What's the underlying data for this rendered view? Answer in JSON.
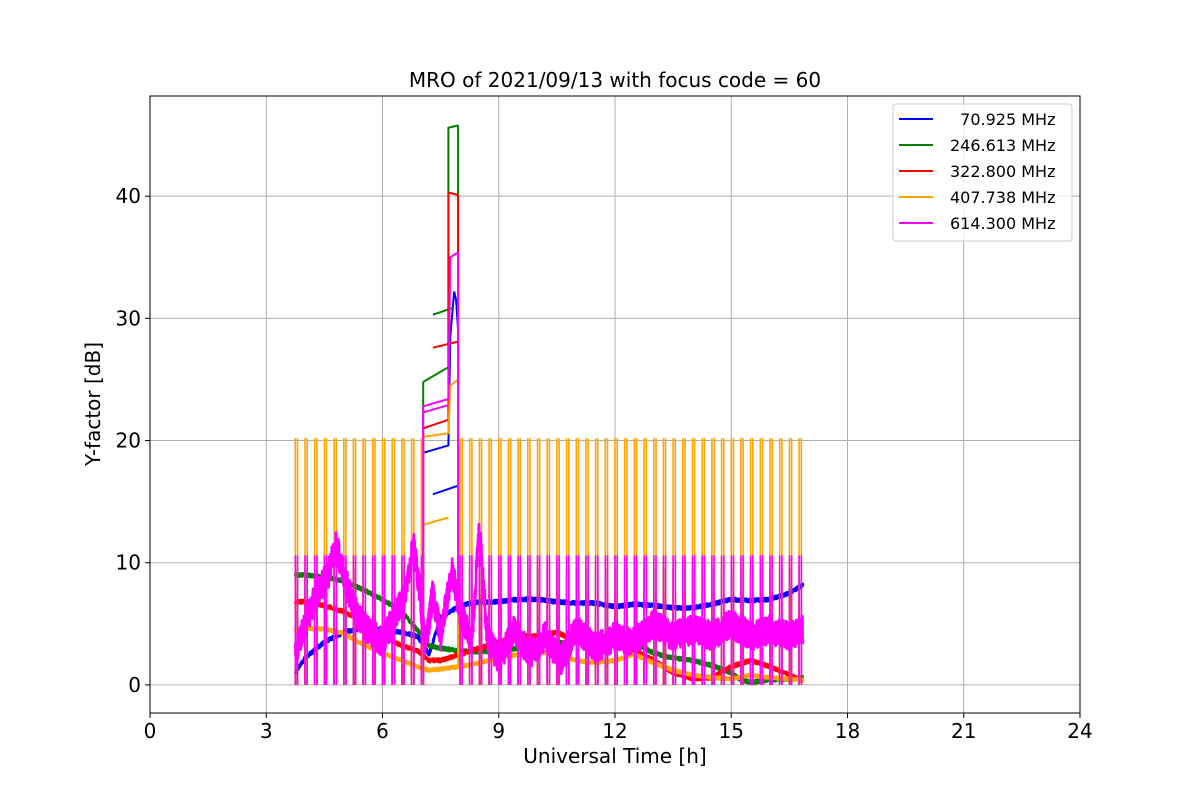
{
  "chart_data": {
    "type": "line",
    "title": "MRO of 2021/09/13 with focus code = 60",
    "xlabel": "Universal Time [h]",
    "ylabel": "Y-factor [dB]",
    "xlim": [
      0,
      24
    ],
    "ylim": [
      -2.3,
      48.2
    ],
    "xticks": [
      0,
      3,
      6,
      9,
      12,
      15,
      18,
      21,
      24
    ],
    "yticks": [
      0,
      10,
      20,
      30,
      40
    ],
    "grid": true,
    "legend_position": "top-right",
    "series": [
      {
        "name": "  70.925 MHz",
        "color": "#0000ff",
        "baseline": [
          [
            3.75,
            1.0
          ],
          [
            4.0,
            2.2
          ],
          [
            4.5,
            3.5
          ],
          [
            5.0,
            4.3
          ],
          [
            5.5,
            4.7
          ],
          [
            6.0,
            4.5
          ],
          [
            6.5,
            4.3
          ],
          [
            6.9,
            4.0
          ],
          [
            7.2,
            2.5
          ],
          [
            7.5,
            5.5
          ],
          [
            8.0,
            6.5
          ],
          [
            8.5,
            6.8
          ],
          [
            9.0,
            6.8
          ],
          [
            9.5,
            7.0
          ],
          [
            10.0,
            7.0
          ],
          [
            10.5,
            6.8
          ],
          [
            11.0,
            6.7
          ],
          [
            11.5,
            6.7
          ],
          [
            12.0,
            6.4
          ],
          [
            12.5,
            6.6
          ],
          [
            13.0,
            6.5
          ],
          [
            13.5,
            6.3
          ],
          [
            14.0,
            6.3
          ],
          [
            14.5,
            6.6
          ],
          [
            15.0,
            7.0
          ],
          [
            15.5,
            6.9
          ],
          [
            16.0,
            7.0
          ],
          [
            16.5,
            7.5
          ],
          [
            16.85,
            8.2
          ]
        ],
        "burst": [
          [
            7.05,
            19.0
          ],
          [
            7.7,
            19.6
          ],
          [
            7.75,
            28.5
          ],
          [
            7.85,
            32.2
          ],
          [
            7.9,
            31.5
          ],
          [
            7.95,
            29.0
          ]
        ],
        "burst_low": [
          [
            7.3,
            15.6
          ],
          [
            7.95,
            16.3
          ]
        ],
        "pulse_top": 5.8,
        "pulse_bottom": 0,
        "noise": 0.15
      },
      {
        "name": "246.613 MHz",
        "color": "#008000",
        "baseline": [
          [
            3.75,
            9.0
          ],
          [
            4.0,
            9.0
          ],
          [
            4.5,
            8.8
          ],
          [
            5.0,
            8.5
          ],
          [
            5.5,
            7.8
          ],
          [
            6.0,
            7.0
          ],
          [
            6.5,
            6.0
          ],
          [
            6.9,
            4.5
          ],
          [
            7.2,
            3.2
          ],
          [
            7.5,
            3.0
          ],
          [
            8.0,
            2.8
          ],
          [
            8.5,
            2.7
          ],
          [
            9.0,
            2.8
          ],
          [
            9.5,
            3.0
          ],
          [
            10.0,
            3.2
          ],
          [
            10.5,
            3.4
          ],
          [
            11.0,
            3.6
          ],
          [
            11.5,
            3.9
          ],
          [
            12.0,
            4.0
          ],
          [
            12.5,
            3.5
          ],
          [
            13.0,
            2.6
          ],
          [
            13.5,
            2.2
          ],
          [
            14.0,
            2.0
          ],
          [
            14.5,
            1.6
          ],
          [
            15.0,
            1.0
          ],
          [
            15.2,
            0.5
          ],
          [
            15.5,
            0.2
          ],
          [
            16.0,
            0.4
          ],
          [
            16.5,
            0.5
          ],
          [
            16.85,
            0.6
          ]
        ],
        "burst": [
          [
            7.05,
            24.8
          ],
          [
            7.7,
            26.0
          ],
          [
            7.7,
            45.6
          ],
          [
            7.95,
            45.8
          ]
        ],
        "burst_low": [
          [
            7.3,
            30.3
          ],
          [
            7.85,
            30.9
          ]
        ],
        "pulse_top": 9.5,
        "pulse_bottom": 0,
        "noise": 0.15
      },
      {
        "name": "322.800 MHz",
        "color": "#ff0000",
        "baseline": [
          [
            3.75,
            6.8
          ],
          [
            4.0,
            6.8
          ],
          [
            4.5,
            6.5
          ],
          [
            5.0,
            6.0
          ],
          [
            5.5,
            5.2
          ],
          [
            6.0,
            4.0
          ],
          [
            6.5,
            3.2
          ],
          [
            6.9,
            2.8
          ],
          [
            7.2,
            2.0
          ],
          [
            7.5,
            2.0
          ],
          [
            8.0,
            2.5
          ],
          [
            8.5,
            3.0
          ],
          [
            9.0,
            3.5
          ],
          [
            9.5,
            4.0
          ],
          [
            10.0,
            4.0
          ],
          [
            10.5,
            4.3
          ],
          [
            11.0,
            3.6
          ],
          [
            11.5,
            3.2
          ],
          [
            12.0,
            3.2
          ],
          [
            12.5,
            2.8
          ],
          [
            13.0,
            2.0
          ],
          [
            13.5,
            1.0
          ],
          [
            14.0,
            0.5
          ],
          [
            14.5,
            0.6
          ],
          [
            15.0,
            1.5
          ],
          [
            15.5,
            2.0
          ],
          [
            16.0,
            1.5
          ],
          [
            16.5,
            0.8
          ],
          [
            16.85,
            0.3
          ]
        ],
        "burst": [
          [
            7.05,
            21.0
          ],
          [
            7.7,
            21.7
          ],
          [
            7.7,
            40.3
          ],
          [
            7.95,
            40.1
          ]
        ],
        "burst_low": [
          [
            7.3,
            27.6
          ],
          [
            7.95,
            28.1
          ]
        ],
        "pulse_top": 7.5,
        "pulse_bottom": 0,
        "noise": 0.15
      },
      {
        "name": "407.738 MHz",
        "color": "#ffa500",
        "baseline": [
          [
            3.75,
            4.5
          ],
          [
            4.0,
            4.6
          ],
          [
            4.5,
            4.6
          ],
          [
            5.0,
            4.2
          ],
          [
            5.5,
            3.3
          ],
          [
            6.0,
            2.6
          ],
          [
            6.5,
            2.0
          ],
          [
            6.9,
            1.5
          ],
          [
            7.2,
            1.2
          ],
          [
            7.5,
            1.3
          ],
          [
            8.0,
            1.5
          ],
          [
            8.5,
            1.8
          ],
          [
            9.0,
            2.2
          ],
          [
            9.5,
            2.5
          ],
          [
            10.0,
            2.7
          ],
          [
            10.5,
            2.5
          ],
          [
            11.0,
            2.0
          ],
          [
            11.5,
            1.8
          ],
          [
            12.0,
            2.0
          ],
          [
            12.5,
            2.5
          ],
          [
            13.0,
            1.8
          ],
          [
            13.5,
            1.2
          ],
          [
            14.0,
            0.8
          ],
          [
            14.5,
            0.6
          ],
          [
            15.0,
            0.5
          ],
          [
            15.5,
            0.8
          ],
          [
            16.0,
            0.6
          ],
          [
            16.5,
            0.5
          ],
          [
            16.85,
            0.4
          ]
        ],
        "burst": [
          [
            7.05,
            20.3
          ],
          [
            7.7,
            20.6
          ],
          [
            7.75,
            24.5
          ],
          [
            7.95,
            25.0
          ]
        ],
        "burst_low": [
          [
            7.05,
            13.1
          ],
          [
            7.7,
            13.7
          ]
        ],
        "pulse_top": 20.2,
        "pulse_bottom": 0,
        "noise": 0.12
      },
      {
        "name": "614.300 MHz",
        "color": "#ff00ff",
        "baseline": [
          [
            3.75,
            2.5
          ],
          [
            4.0,
            5.0
          ],
          [
            4.3,
            7.5
          ],
          [
            4.6,
            9.0
          ],
          [
            4.8,
            11.5
          ],
          [
            5.0,
            9.0
          ],
          [
            5.3,
            6.0
          ],
          [
            5.6,
            4.5
          ],
          [
            6.0,
            3.5
          ],
          [
            6.3,
            5.5
          ],
          [
            6.6,
            7.5
          ],
          [
            6.8,
            11.5
          ],
          [
            6.95,
            8.0
          ],
          [
            7.1,
            3.0
          ],
          [
            7.3,
            7.5
          ],
          [
            7.5,
            4.0
          ],
          [
            7.8,
            9.5
          ],
          [
            8.0,
            6.0
          ],
          [
            8.3,
            3.5
          ],
          [
            8.5,
            13.0
          ],
          [
            8.7,
            4.0
          ],
          [
            9.0,
            2.0
          ],
          [
            9.4,
            4.5
          ],
          [
            9.8,
            2.5
          ],
          [
            10.2,
            4.0
          ],
          [
            10.6,
            2.0
          ],
          [
            11.0,
            4.5
          ],
          [
            11.5,
            3.0
          ],
          [
            12.0,
            4.0
          ],
          [
            12.5,
            3.5
          ],
          [
            13.0,
            5.0
          ],
          [
            13.5,
            4.0
          ],
          [
            14.0,
            4.5
          ],
          [
            14.5,
            4.0
          ],
          [
            15.0,
            5.0
          ],
          [
            15.5,
            4.0
          ],
          [
            16.0,
            4.5
          ],
          [
            16.5,
            4.0
          ],
          [
            16.85,
            4.5
          ]
        ],
        "burst": [
          [
            7.05,
            22.8
          ],
          [
            7.7,
            23.4
          ],
          [
            7.75,
            35.0
          ],
          [
            7.95,
            35.4
          ]
        ],
        "burst_low": [
          [
            7.05,
            22.3
          ],
          [
            7.7,
            22.9
          ]
        ],
        "pulse_top": 10.6,
        "pulse_bottom": 0,
        "noise": 1.2
      }
    ],
    "pulse_times": {
      "start": 3.75,
      "end": 16.85,
      "interval": 0.25
    }
  }
}
